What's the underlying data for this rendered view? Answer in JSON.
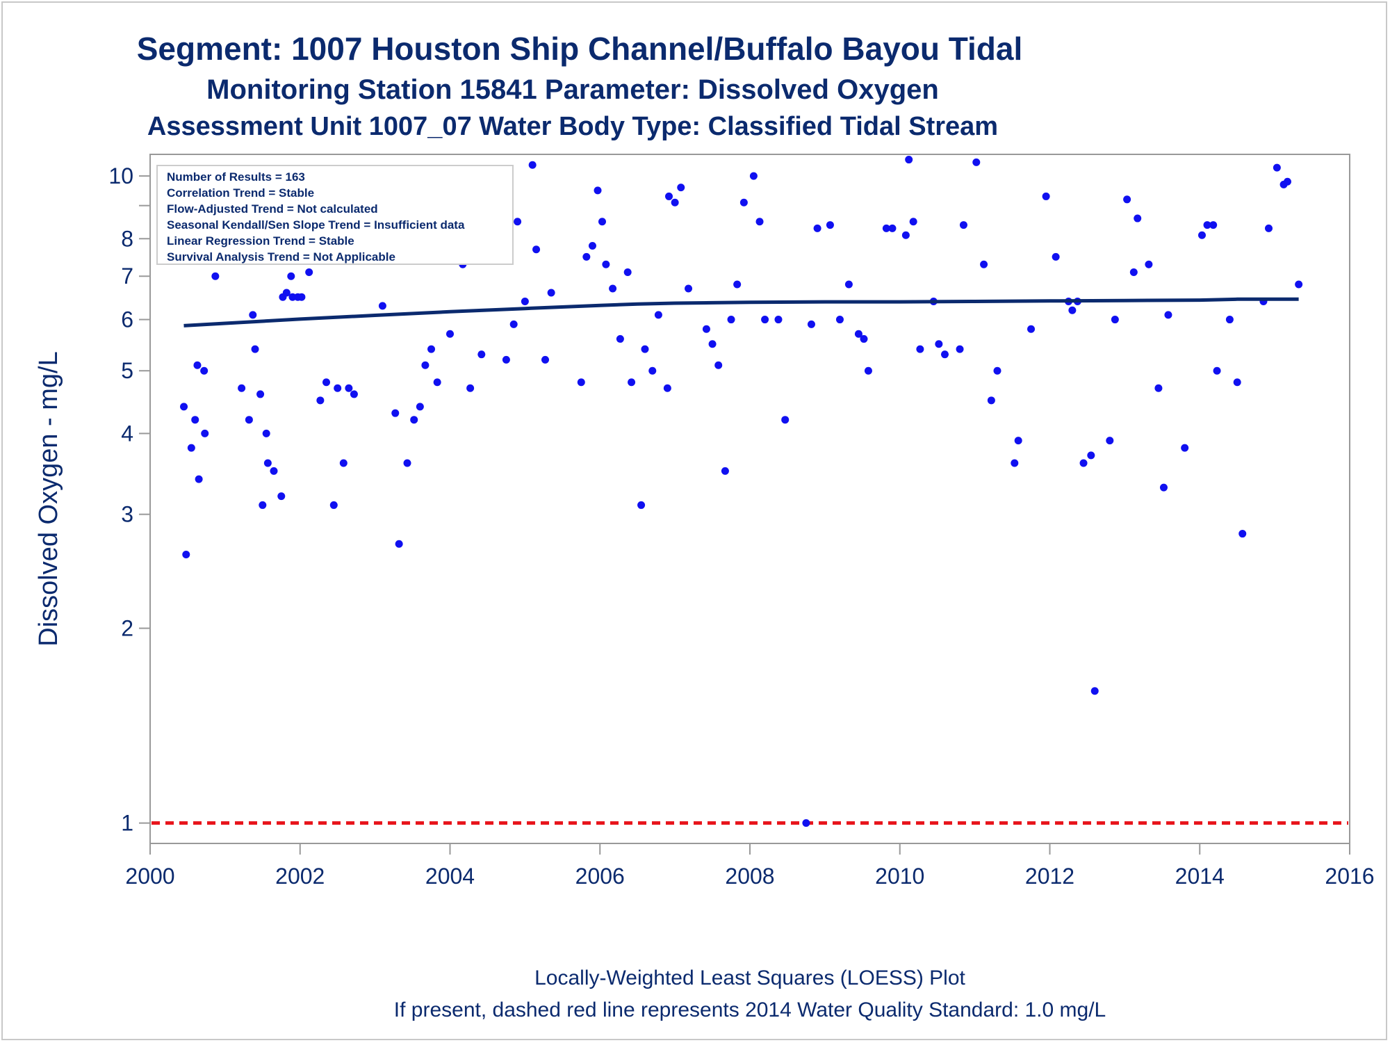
{
  "chart_data": {
    "type": "scatter",
    "title": "Segment: 1007  Houston Ship Channel/Buffalo Bayou Tidal",
    "subtitle": "Monitoring Station 15841 Parameter: Dissolved Oxygen",
    "subtitle2": "Assessment Unit 1007_07   Water Body Type: Classified Tidal Stream",
    "xlabel": "",
    "ylabel": "Dissolved Oxygen - mg/L",
    "xlim": [
      2000,
      2016
    ],
    "ylim": [
      0.93,
      10.8
    ],
    "yscale": "log",
    "x_ticks": [
      "2000",
      "2002",
      "2004",
      "2006",
      "2008",
      "2010",
      "2012",
      "2014",
      "2016"
    ],
    "y_ticks": [
      {
        "value": 1,
        "label": "1"
      },
      {
        "value": 2,
        "label": "2"
      },
      {
        "value": 3,
        "label": "3"
      },
      {
        "value": 4,
        "label": "4"
      },
      {
        "value": 5,
        "label": "5"
      },
      {
        "value": 6,
        "label": "6"
      },
      {
        "value": 7,
        "label": "7"
      },
      {
        "value": 8,
        "label": "8"
      },
      {
        "value": 9,
        "label": ""
      },
      {
        "value": 10,
        "label": "10"
      }
    ],
    "grid": false,
    "legend_box": {
      "placement": "top-left",
      "lines": [
        "Number of Results = 163",
        "Correlation Trend = Stable",
        "Flow-Adjusted Trend = Not calculated",
        "Seasonal Kendall/Sen Slope Trend = Insufficient data",
        "Linear Regression Trend = Stable",
        "Survival Analysis Trend = Not Applicable"
      ]
    },
    "footnotes": [
      "Locally-Weighted Least Squares (LOESS) Plot",
      "If present, dashed red line represents 2014 Water Quality Standard: 1.0 mg/L"
    ],
    "standard": {
      "value": 1.0,
      "color": "#e8141b"
    },
    "colors": {
      "points": "#1010f0",
      "loess": "#0b2a6e",
      "text": "#0b2a6e",
      "axis": "#999999"
    },
    "points": [
      [
        2000.45,
        4.4
      ],
      [
        2000.48,
        2.6
      ],
      [
        2000.55,
        3.8
      ],
      [
        2000.6,
        4.2
      ],
      [
        2000.63,
        5.1
      ],
      [
        2000.65,
        3.4
      ],
      [
        2000.72,
        5.0
      ],
      [
        2000.73,
        4.0
      ],
      [
        2000.78,
        9.0
      ],
      [
        2000.8,
        9.8
      ],
      [
        2000.87,
        7.0
      ],
      [
        2000.9,
        8.6
      ],
      [
        2000.97,
        8.3
      ],
      [
        2001.0,
        7.7
      ],
      [
        2001.05,
        7.5
      ],
      [
        2001.1,
        8.6
      ],
      [
        2001.12,
        8.9
      ],
      [
        2001.15,
        7.5
      ],
      [
        2001.2,
        8.1
      ],
      [
        2001.22,
        4.7
      ],
      [
        2001.27,
        7.9
      ],
      [
        2001.32,
        4.2
      ],
      [
        2001.37,
        6.1
      ],
      [
        2001.4,
        5.4
      ],
      [
        2001.47,
        4.6
      ],
      [
        2001.5,
        3.1
      ],
      [
        2001.55,
        4.0
      ],
      [
        2001.57,
        3.6
      ],
      [
        2001.65,
        3.5
      ],
      [
        2001.75,
        3.2
      ],
      [
        2001.77,
        6.5
      ],
      [
        2001.82,
        6.6
      ],
      [
        2001.87,
        7.9
      ],
      [
        2001.88,
        7.0
      ],
      [
        2001.9,
        6.5
      ],
      [
        2001.97,
        6.5
      ],
      [
        2002.0,
        8.0
      ],
      [
        2002.02,
        6.5
      ],
      [
        2002.07,
        8.7
      ],
      [
        2002.12,
        7.1
      ],
      [
        2002.17,
        8.6
      ],
      [
        2002.27,
        4.5
      ],
      [
        2002.35,
        4.8
      ],
      [
        2002.45,
        3.1
      ],
      [
        2002.5,
        4.7
      ],
      [
        2002.58,
        3.6
      ],
      [
        2002.65,
        4.7
      ],
      [
        2002.72,
        4.6
      ],
      [
        2002.87,
        7.8
      ],
      [
        2002.9,
        7.7
      ],
      [
        2003.03,
        9.3
      ],
      [
        2003.1,
        6.3
      ],
      [
        2003.15,
        8.7
      ],
      [
        2003.27,
        4.3
      ],
      [
        2003.32,
        2.7
      ],
      [
        2003.43,
        3.6
      ],
      [
        2003.52,
        4.2
      ],
      [
        2003.6,
        4.4
      ],
      [
        2003.67,
        5.1
      ],
      [
        2003.75,
        5.4
      ],
      [
        2003.83,
        4.8
      ],
      [
        2003.92,
        7.4
      ],
      [
        2004.0,
        5.7
      ],
      [
        2004.1,
        8.8
      ],
      [
        2004.17,
        7.3
      ],
      [
        2004.27,
        4.7
      ],
      [
        2004.42,
        5.3
      ],
      [
        2004.75,
        5.2
      ],
      [
        2004.85,
        5.9
      ],
      [
        2004.9,
        8.5
      ],
      [
        2005.0,
        6.4
      ],
      [
        2005.1,
        10.4
      ],
      [
        2005.15,
        7.7
      ],
      [
        2005.27,
        5.2
      ],
      [
        2005.35,
        6.6
      ],
      [
        2005.75,
        4.8
      ],
      [
        2005.82,
        7.5
      ],
      [
        2005.9,
        7.8
      ],
      [
        2005.97,
        9.5
      ],
      [
        2006.03,
        8.5
      ],
      [
        2006.08,
        7.3
      ],
      [
        2006.17,
        6.7
      ],
      [
        2006.27,
        5.6
      ],
      [
        2006.37,
        7.1
      ],
      [
        2006.42,
        4.8
      ],
      [
        2006.55,
        3.1
      ],
      [
        2006.6,
        5.4
      ],
      [
        2006.7,
        5.0
      ],
      [
        2006.78,
        6.1
      ],
      [
        2006.9,
        4.7
      ],
      [
        2006.92,
        9.3
      ],
      [
        2007.0,
        9.1
      ],
      [
        2007.08,
        9.6
      ],
      [
        2007.18,
        6.7
      ],
      [
        2007.42,
        5.8
      ],
      [
        2007.5,
        5.5
      ],
      [
        2007.58,
        5.1
      ],
      [
        2007.67,
        3.5
      ],
      [
        2007.75,
        6.0
      ],
      [
        2007.83,
        6.8
      ],
      [
        2007.92,
        9.1
      ],
      [
        2008.05,
        10.0
      ],
      [
        2008.13,
        8.5
      ],
      [
        2008.2,
        6.0
      ],
      [
        2008.38,
        6.0
      ],
      [
        2008.47,
        4.2
      ],
      [
        2008.75,
        1.0
      ],
      [
        2008.82,
        5.9
      ],
      [
        2008.9,
        8.3
      ],
      [
        2009.07,
        8.4
      ],
      [
        2009.2,
        6.0
      ],
      [
        2009.32,
        6.8
      ],
      [
        2009.45,
        5.7
      ],
      [
        2009.52,
        5.6
      ],
      [
        2009.58,
        5.0
      ],
      [
        2009.82,
        8.3
      ],
      [
        2009.9,
        8.3
      ],
      [
        2010.08,
        8.1
      ],
      [
        2010.12,
        10.6
      ],
      [
        2010.18,
        8.5
      ],
      [
        2010.27,
        5.4
      ],
      [
        2010.45,
        6.4
      ],
      [
        2010.52,
        5.5
      ],
      [
        2010.6,
        5.3
      ],
      [
        2010.8,
        5.4
      ],
      [
        2010.85,
        8.4
      ],
      [
        2011.02,
        10.5
      ],
      [
        2011.12,
        7.3
      ],
      [
        2011.22,
        4.5
      ],
      [
        2011.3,
        5.0
      ],
      [
        2011.53,
        3.6
      ],
      [
        2011.58,
        3.9
      ],
      [
        2011.75,
        5.8
      ],
      [
        2011.95,
        9.3
      ],
      [
        2012.08,
        7.5
      ],
      [
        2012.25,
        6.4
      ],
      [
        2012.3,
        6.2
      ],
      [
        2012.37,
        6.4
      ],
      [
        2012.45,
        3.6
      ],
      [
        2012.55,
        3.7
      ],
      [
        2012.6,
        1.6
      ],
      [
        2012.8,
        3.9
      ],
      [
        2012.87,
        6.0
      ],
      [
        2013.03,
        9.2
      ],
      [
        2013.12,
        7.1
      ],
      [
        2013.17,
        8.6
      ],
      [
        2013.32,
        7.3
      ],
      [
        2013.45,
        4.7
      ],
      [
        2013.52,
        3.3
      ],
      [
        2013.58,
        6.1
      ],
      [
        2013.8,
        3.8
      ],
      [
        2014.03,
        8.1
      ],
      [
        2014.1,
        8.4
      ],
      [
        2014.18,
        8.4
      ],
      [
        2014.23,
        5.0
      ],
      [
        2014.4,
        6.0
      ],
      [
        2014.5,
        4.8
      ],
      [
        2014.57,
        2.8
      ],
      [
        2014.85,
        6.4
      ],
      [
        2014.92,
        8.3
      ],
      [
        2015.03,
        10.3
      ],
      [
        2015.12,
        9.7
      ],
      [
        2015.17,
        9.8
      ],
      [
        2015.32,
        6.8
      ]
    ],
    "loess": [
      [
        2000.45,
        5.87
      ],
      [
        2001.0,
        5.92
      ],
      [
        2002.0,
        6.01
      ],
      [
        2003.0,
        6.09
      ],
      [
        2004.0,
        6.17
      ],
      [
        2005.0,
        6.24
      ],
      [
        2006.0,
        6.31
      ],
      [
        2006.5,
        6.34
      ],
      [
        2007.0,
        6.36
      ],
      [
        2007.5,
        6.37
      ],
      [
        2008.0,
        6.38
      ],
      [
        2009.0,
        6.39
      ],
      [
        2010.0,
        6.39
      ],
      [
        2011.0,
        6.4
      ],
      [
        2012.0,
        6.41
      ],
      [
        2013.0,
        6.42
      ],
      [
        2014.0,
        6.43
      ],
      [
        2014.5,
        6.45
      ],
      [
        2015.32,
        6.45
      ]
    ]
  }
}
